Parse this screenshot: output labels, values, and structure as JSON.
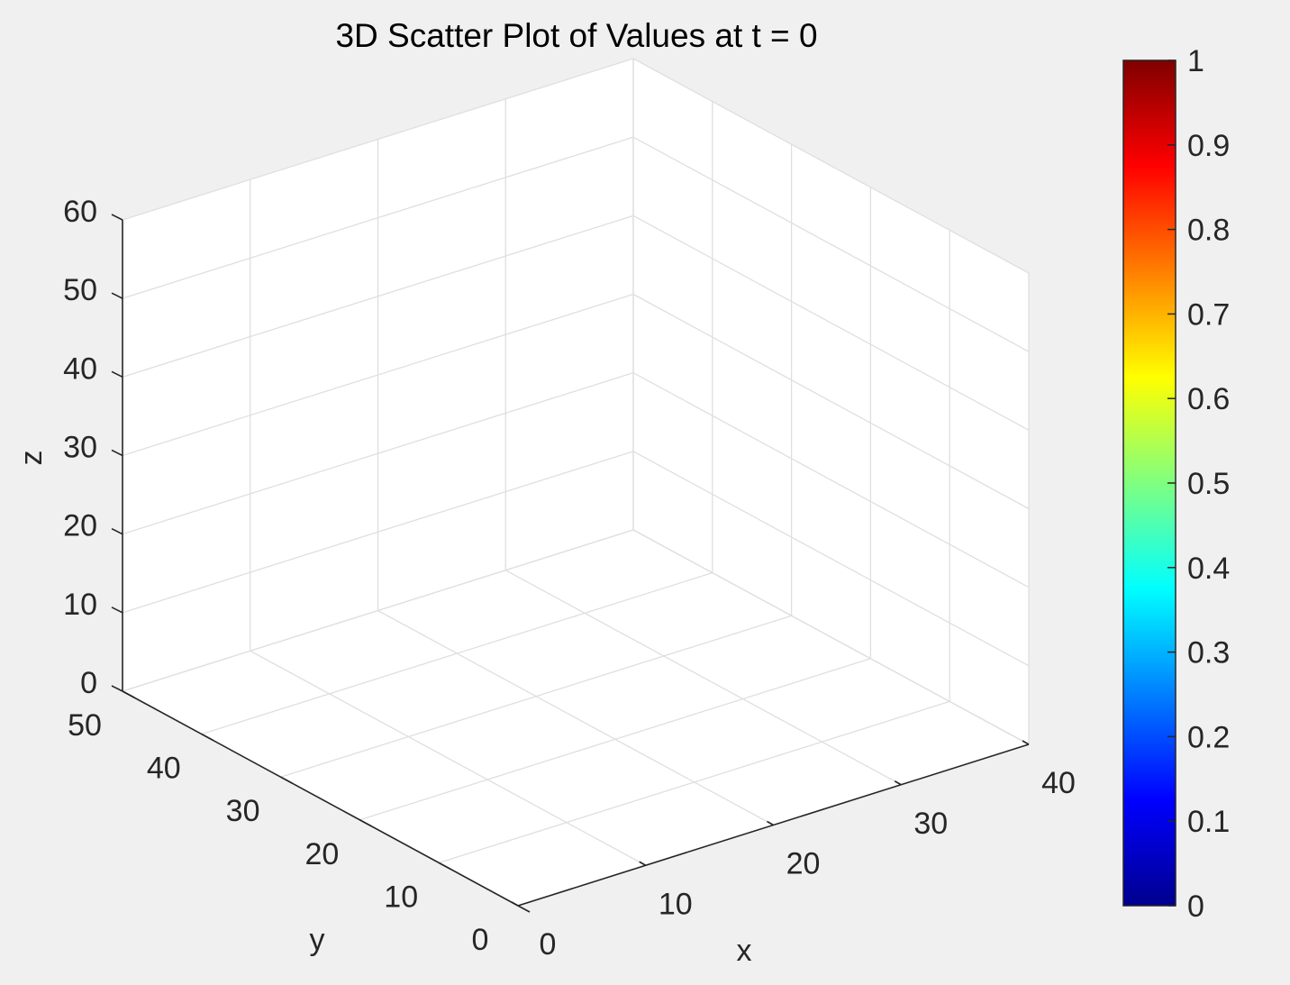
{
  "chart_data": {
    "type": "scatter",
    "dimensions": 3,
    "title": "3D Scatter Plot of Values at t = 0",
    "xlabel": "x",
    "ylabel": "y",
    "zlabel": "z",
    "xlim": [
      0,
      40
    ],
    "ylim": [
      0,
      50
    ],
    "zlim": [
      0,
      60
    ],
    "xticks": [
      0,
      10,
      20,
      30,
      40
    ],
    "yticks": [
      0,
      10,
      20,
      30,
      40,
      50
    ],
    "zticks": [
      0,
      10,
      20,
      30,
      40,
      50,
      60
    ],
    "xtick_labels": [
      "0",
      "10",
      "20",
      "30",
      "40"
    ],
    "ytick_labels": [
      "0",
      "10",
      "20",
      "30",
      "40",
      "50"
    ],
    "ztick_labels": [
      "0",
      "10",
      "20",
      "30",
      "40",
      "50",
      "60"
    ],
    "grid": true,
    "points": [],
    "colorbar": {
      "colormap": "jet",
      "range": [
        0,
        1
      ],
      "ticks": [
        "0",
        "0.1",
        "0.2",
        "0.3",
        "0.4",
        "0.5",
        "0.6",
        "0.7",
        "0.8",
        "0.9",
        "1"
      ],
      "placement": "right"
    }
  },
  "colors": {
    "figure_background": "#f0f0f0",
    "axes_background": "#ffffff",
    "grid": "#dfdfdf",
    "axis_line": "#262626"
  }
}
